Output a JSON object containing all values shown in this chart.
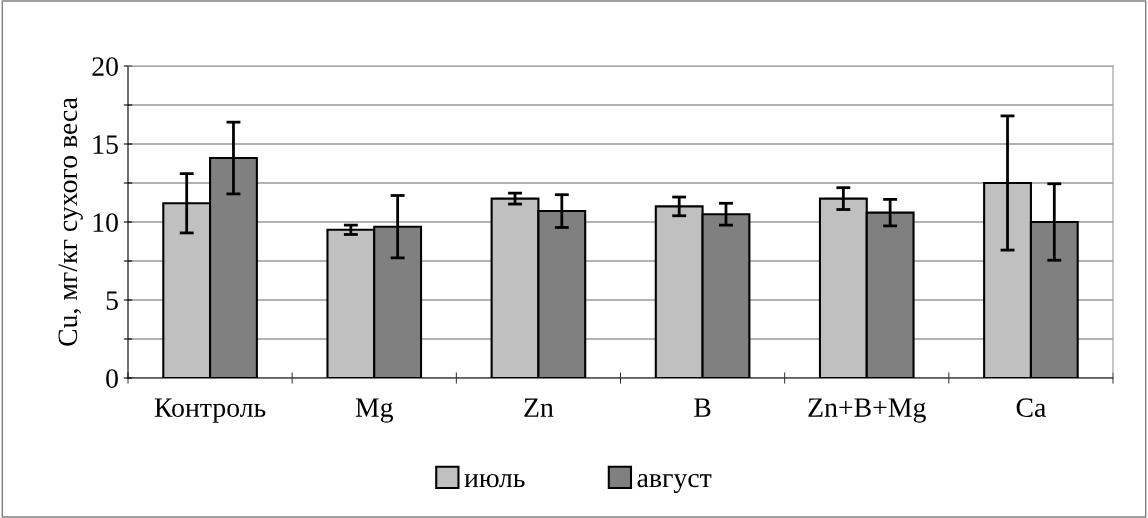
{
  "chart_data": {
    "type": "bar",
    "ylabel": "Cu, мг/кг сухого веса",
    "categories": [
      "Контроль",
      "Mg",
      "Zn",
      "B",
      "Zn+B+Mg",
      "Ca"
    ],
    "series": [
      {
        "name": "июль",
        "color": "#c0c0c0",
        "values": [
          11.2,
          9.5,
          11.5,
          11.0,
          11.5,
          12.5
        ],
        "errors": [
          1.9,
          0.3,
          0.35,
          0.6,
          0.7,
          4.3
        ]
      },
      {
        "name": "август",
        "color": "#808080",
        "values": [
          14.1,
          9.7,
          10.7,
          10.5,
          10.6,
          10.0
        ],
        "errors": [
          2.3,
          2.0,
          1.05,
          0.7,
          0.85,
          2.45
        ]
      }
    ],
    "ylim": [
      0,
      20
    ],
    "yticks": [
      0,
      {
        "value": 2.5,
        "label": null
      },
      5,
      {
        "value": 7.5,
        "label": null
      },
      10,
      {
        "value": 12.5,
        "label": null
      },
      15,
      {
        "value": 17.5,
        "label": null
      },
      20
    ],
    "grid": "y",
    "legend": "bottom"
  }
}
